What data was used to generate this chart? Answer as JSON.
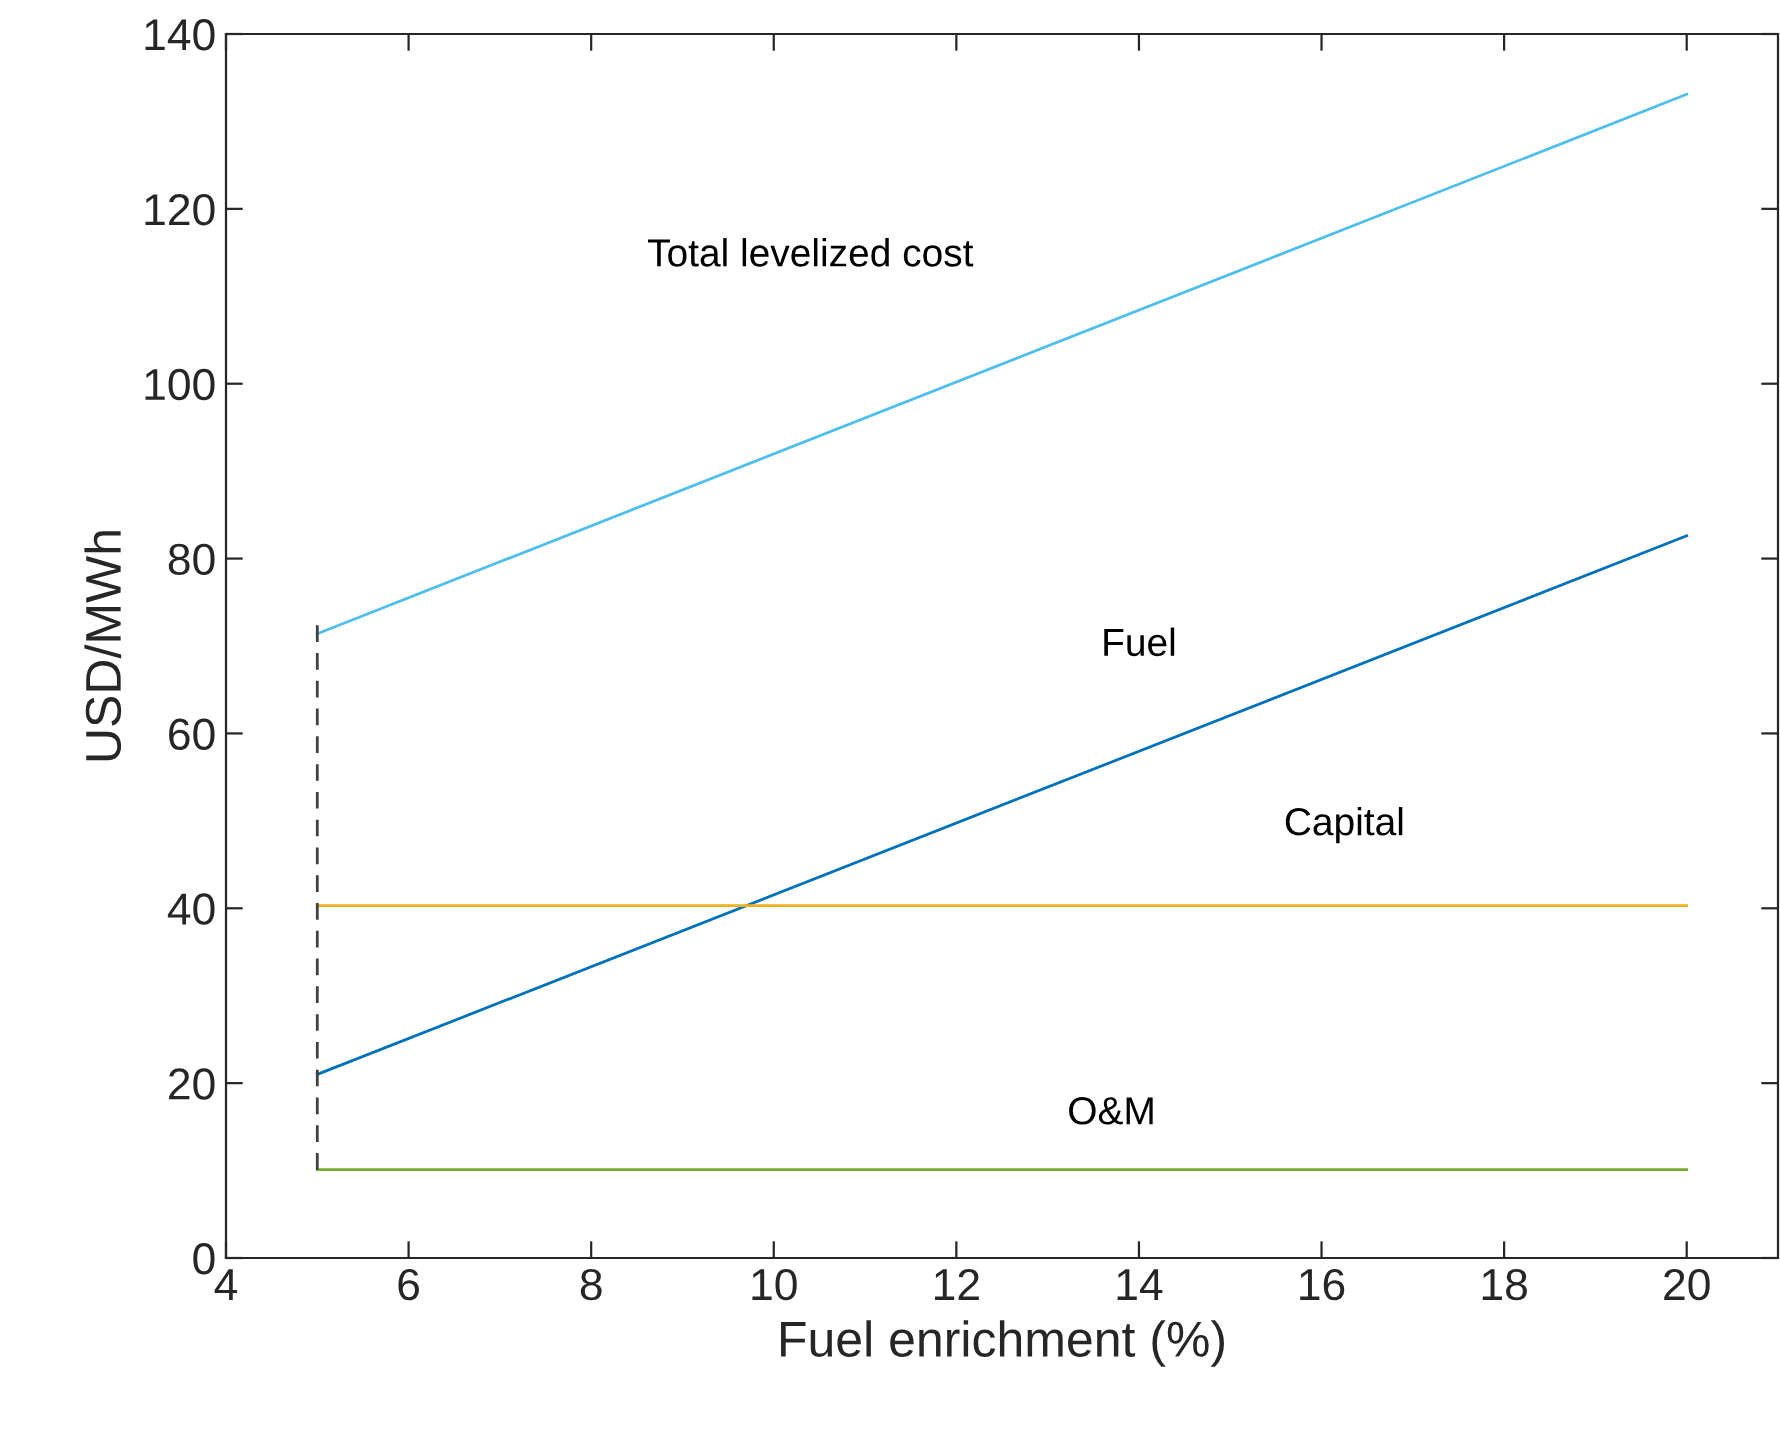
{
  "chart_data": {
    "type": "line",
    "xlabel": "Fuel enrichment (%)",
    "ylabel": "USD/MWh",
    "x": [
      5,
      20
    ],
    "series": [
      {
        "name": "Total levelized cost",
        "color": "#4dbeee",
        "values": [
          71.4,
          133.1
        ]
      },
      {
        "name": "Fuel",
        "color": "#0072bd",
        "values": [
          21.0,
          82.6
        ]
      },
      {
        "name": "Capital",
        "color": "#edb120",
        "values": [
          40.3,
          40.3
        ]
      },
      {
        "name": "O&M",
        "color": "#77ac30",
        "values": [
          10.1,
          10.1
        ]
      },
      {
        "color": "#404040",
        "x": [
          5,
          5
        ],
        "values": [
          10.1,
          72.5
        ],
        "line_style": "dashed"
      }
    ],
    "xlim": [
      4,
      21
    ],
    "xticks": [
      4,
      6,
      8,
      10,
      12,
      14,
      16,
      18,
      20
    ],
    "ylim": [
      0,
      140
    ],
    "yticks": [
      0,
      20,
      40,
      60,
      80,
      100,
      120,
      140
    ],
    "grid": false,
    "legend": false,
    "marker": "none",
    "line_style": "solid"
  }
}
